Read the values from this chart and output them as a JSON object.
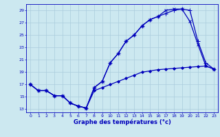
{
  "xlabel": "Graphe des températures (°c)",
  "bg_color": "#cce8f0",
  "grid_color": "#aaccdd",
  "line_color": "#0000bb",
  "xlim": [
    -0.5,
    23.5
  ],
  "ylim": [
    12.5,
    30
  ],
  "xticks": [
    0,
    1,
    2,
    3,
    4,
    5,
    6,
    7,
    8,
    9,
    10,
    11,
    12,
    13,
    14,
    15,
    16,
    17,
    18,
    19,
    20,
    21,
    22,
    23
  ],
  "yticks": [
    13,
    15,
    17,
    19,
    21,
    23,
    25,
    27,
    29
  ],
  "series": [
    {
      "x": [
        0,
        1,
        2,
        3,
        4,
        5,
        6,
        7,
        8,
        9,
        10,
        11,
        12,
        13,
        14,
        15,
        16,
        17,
        18,
        19,
        20,
        21,
        22,
        23
      ],
      "y": [
        17,
        16,
        16,
        15.2,
        15.2,
        14,
        13.5,
        13.2,
        16.0,
        16.5,
        17.0,
        17.5,
        18.0,
        18.5,
        19.0,
        19.2,
        19.4,
        19.5,
        19.6,
        19.7,
        19.8,
        19.9,
        20.0,
        19.5
      ],
      "marker": "D",
      "markersize": 2,
      "linewidth": 0.9
    },
    {
      "x": [
        0,
        1,
        2,
        3,
        4,
        5,
        6,
        7,
        8,
        9,
        10,
        11,
        12,
        13,
        14,
        15,
        16,
        17,
        18,
        19,
        20,
        21,
        22,
        23
      ],
      "y": [
        17,
        16,
        16,
        15.2,
        15.2,
        14,
        13.5,
        13.2,
        16.5,
        17.5,
        20.5,
        22.0,
        24.0,
        25.0,
        26.5,
        27.5,
        28.0,
        28.5,
        29.0,
        29.2,
        29.0,
        24.0,
        20.5,
        19.5
      ],
      "marker": "+",
      "markersize": 4,
      "linewidth": 0.9
    },
    {
      "x": [
        0,
        1,
        2,
        3,
        4,
        5,
        6,
        7,
        8,
        9,
        10,
        11,
        12,
        13,
        14,
        15,
        16,
        17,
        18,
        19,
        20,
        21,
        22,
        23
      ],
      "y": [
        17,
        16,
        16,
        15.2,
        15.2,
        14,
        13.5,
        13.2,
        16.5,
        17.5,
        20.5,
        22.0,
        24.0,
        25.0,
        26.5,
        27.5,
        28.0,
        29.0,
        29.2,
        29.2,
        27.2,
        23.5,
        20.0,
        19.5
      ],
      "marker": "x",
      "markersize": 3,
      "linewidth": 0.9
    }
  ]
}
